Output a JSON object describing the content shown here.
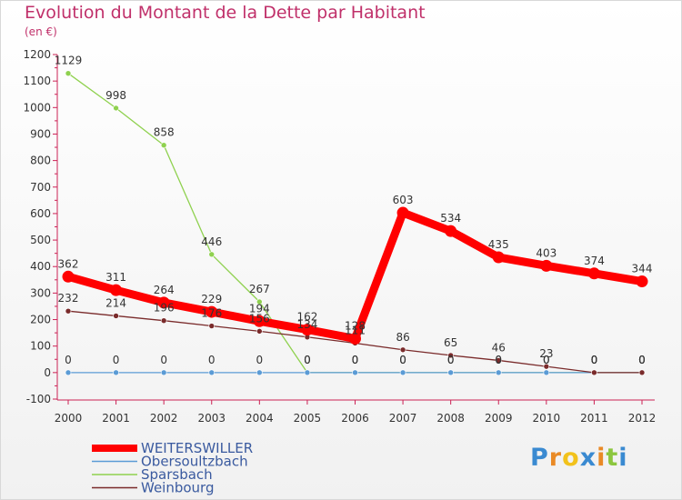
{
  "title": "Evolution du Montant de la Dette par Habitant",
  "unit": "(en €)",
  "logo": {
    "text": "Proxiti",
    "letter_colors": [
      "#3a8ad1",
      "#e98a26",
      "#f2c21c",
      "#3a8ad1",
      "#e98a26",
      "#8cc63f",
      "#3a8ad1"
    ]
  },
  "chart_data": {
    "type": "line",
    "x": [
      2000,
      2001,
      2002,
      2003,
      2004,
      2005,
      2006,
      2007,
      2008,
      2009,
      2010,
      2011,
      2012
    ],
    "ylim": [
      -100,
      1200
    ],
    "yticks": [
      -100,
      0,
      100,
      200,
      300,
      400,
      500,
      600,
      700,
      800,
      900,
      1000,
      1100,
      1200
    ],
    "grid": false,
    "legend_position": "bottom-left",
    "series": [
      {
        "name": "WEITERSWILLER",
        "color": "#ff0000",
        "values": [
          362,
          311,
          264,
          229,
          194,
          162,
          128,
          603,
          534,
          435,
          403,
          374,
          344
        ],
        "labels": [
          "362",
          "311",
          "264",
          "229",
          "194",
          "162",
          "128",
          "603",
          "534",
          "435",
          "403",
          "374",
          "344"
        ]
      },
      {
        "name": "Obersoultzbach",
        "color": "#5b9bd5",
        "values": [
          0,
          0,
          0,
          0,
          0,
          0,
          0,
          0,
          0,
          0,
          0,
          0,
          0
        ],
        "labels": [
          "0",
          "0",
          "0",
          "0",
          "0",
          "0",
          "0",
          "0",
          "0",
          "0",
          "0",
          "0",
          "0"
        ]
      },
      {
        "name": "Sparsbach",
        "color": "#8fd14f",
        "values": [
          1129,
          998,
          858,
          446,
          267,
          0,
          0,
          0,
          0,
          0,
          0,
          0,
          0
        ],
        "labels": [
          "1129",
          "998",
          "858",
          "446",
          "267",
          "0",
          "0",
          "0",
          "0",
          "0",
          "0",
          "0",
          "0"
        ]
      },
      {
        "name": "Weinbourg",
        "color": "#7a2b2b",
        "values": [
          232,
          214,
          196,
          176,
          156,
          134,
          111,
          86,
          65,
          46,
          23,
          0,
          0
        ],
        "labels": [
          "232",
          "214",
          "196",
          "176",
          "156",
          "134",
          "111",
          "86",
          "65",
          "46",
          "23",
          "0",
          "0"
        ]
      }
    ]
  }
}
